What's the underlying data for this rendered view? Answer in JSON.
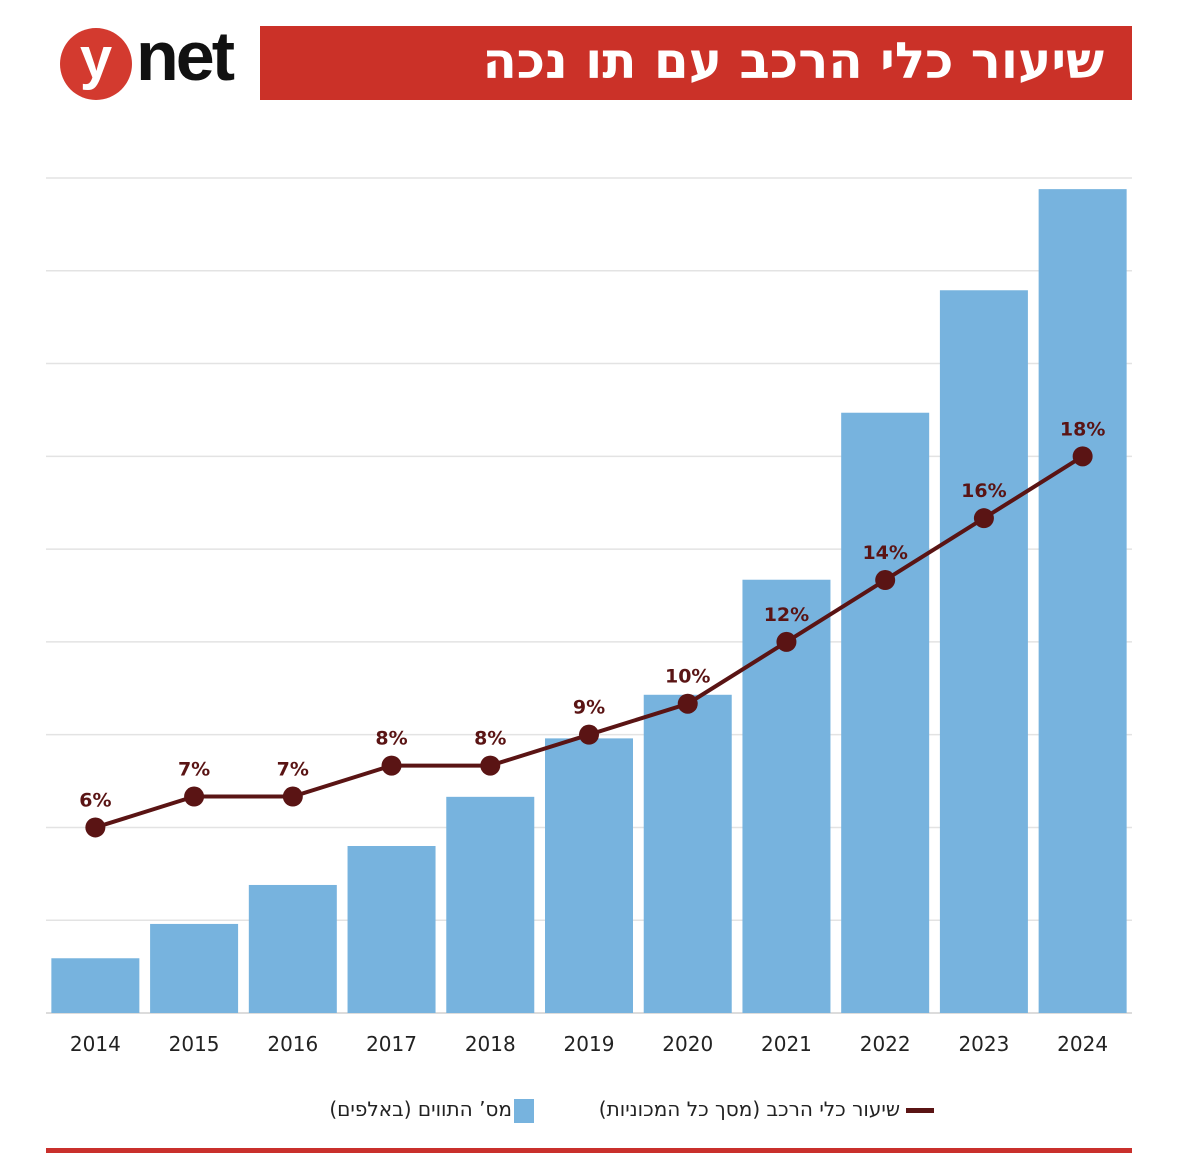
{
  "header": {
    "logo_text": "ynet",
    "title": "שיעור כלי הרכב עם תו נכה"
  },
  "colors": {
    "header": "#cb3128",
    "bars": "#77b3de",
    "line": "#5a1414",
    "grid": "#e3e3e3"
  },
  "chart_data": {
    "type": "bar+line",
    "title": "שיעור כלי הרכב עם תו נכה",
    "categories": [
      "2014",
      "2015",
      "2016",
      "2017",
      "2018",
      "2019",
      "2020",
      "2021",
      "2022",
      "2023",
      "2024"
    ],
    "grid": true,
    "legend_position": "bottom",
    "series": [
      {
        "name": "מס’ התווים (באלפים)",
        "type": "bar",
        "axis": "unlabeled (relative, gridline units)",
        "ylim": [
          0,
          9
        ],
        "values": [
          0.59,
          0.96,
          1.38,
          1.8,
          2.33,
          2.96,
          3.43,
          4.67,
          6.47,
          7.79,
          8.88
        ]
      },
      {
        "name": "שיעור כלי הרכב (מסך כל המכוניות)",
        "type": "line",
        "unit": "%",
        "ylim": [
          0,
          27
        ],
        "values": [
          6,
          7,
          7,
          8,
          8,
          9,
          10,
          12,
          14,
          16,
          18
        ],
        "labels": [
          "6%",
          "7%",
          "7%",
          "8%",
          "8%",
          "9%",
          "10%",
          "12%",
          "14%",
          "16%",
          "18%"
        ]
      }
    ]
  }
}
